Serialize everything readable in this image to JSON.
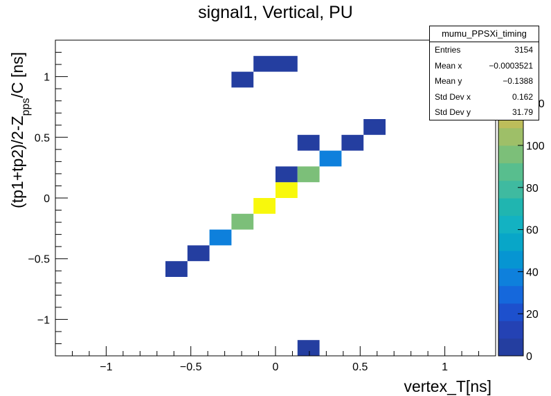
{
  "chart_data": {
    "type": "heatmap",
    "title": "signal1, Vertical, PU",
    "xlabel": "vertex_T[ns]",
    "ylabel_parts": [
      "(tp1+tp2)/2-Z",
      "pps",
      "/C [ns]"
    ],
    "xlim": [
      -1.3,
      1.3
    ],
    "ylim": [
      -1.3,
      1.3
    ],
    "x_ticks": [
      -1,
      -0.5,
      0,
      0.5,
      1
    ],
    "x_tick_labels": [
      "−1",
      "−0.5",
      "0",
      "0.5",
      "1"
    ],
    "y_ticks": [
      -1,
      -0.5,
      0,
      0.5,
      1
    ],
    "y_tick_labels": [
      "−1",
      "−0.5",
      "0",
      "0.5",
      "1"
    ],
    "bin_width_x": 0.13,
    "bin_width_y": 0.13,
    "cells": [
      {
        "x": 0.195,
        "y": -1.235,
        "z": 5
      },
      {
        "x": -0.585,
        "y": -0.585,
        "z": 5
      },
      {
        "x": -0.455,
        "y": -0.455,
        "z": 6
      },
      {
        "x": -0.325,
        "y": -0.325,
        "z": 35
      },
      {
        "x": -0.195,
        "y": -0.195,
        "z": 95
      },
      {
        "x": -0.065,
        "y": -0.065,
        "z": 150
      },
      {
        "x": 0.065,
        "y": 0.065,
        "z": 150
      },
      {
        "x": 0.065,
        "y": 0.195,
        "z": 6
      },
      {
        "x": 0.195,
        "y": 0.195,
        "z": 95
      },
      {
        "x": 0.325,
        "y": 0.325,
        "z": 35
      },
      {
        "x": 0.195,
        "y": 0.455,
        "z": 6
      },
      {
        "x": 0.455,
        "y": 0.455,
        "z": 6
      },
      {
        "x": 0.585,
        "y": 0.585,
        "z": 6
      },
      {
        "x": -0.195,
        "y": 0.975,
        "z": 5
      },
      {
        "x": -0.065,
        "y": 1.105,
        "z": 5
      },
      {
        "x": 0.065,
        "y": 1.105,
        "z": 5
      }
    ],
    "z_range": [
      0,
      150
    ],
    "z_ticks": [
      0,
      20,
      40,
      60,
      80,
      100,
      120
    ],
    "z_tick_labels": [
      "0",
      "20",
      "40",
      "60",
      "80",
      "100",
      "120"
    ],
    "palette": [
      "#243ea0",
      "#2442b4",
      "#1d50cd",
      "#1568dc",
      "#0e80dc",
      "#0695d2",
      "#08a6c8",
      "#13b2c2",
      "#20b5b0",
      "#3fbaa0",
      "#58be8e",
      "#7cbf79",
      "#9ebf68",
      "#bdbd5a",
      "#dbba4a",
      "#f0c23a",
      "#f8d83c",
      "#f8ea2c"
    ],
    "peak_color": "#f8f80c",
    "grid": false
  },
  "stats": {
    "title": "mumu_PPSXi_timing",
    "rows": [
      {
        "label": "Entries",
        "value": "3154"
      },
      {
        "label": "Mean x",
        "value": "−0.0003521"
      },
      {
        "label": "Mean y",
        "value": "−0.1388"
      },
      {
        "label": "Std Dev x",
        "value": "0.162"
      },
      {
        "label": "Std Dev y",
        "value": "31.79"
      }
    ]
  }
}
